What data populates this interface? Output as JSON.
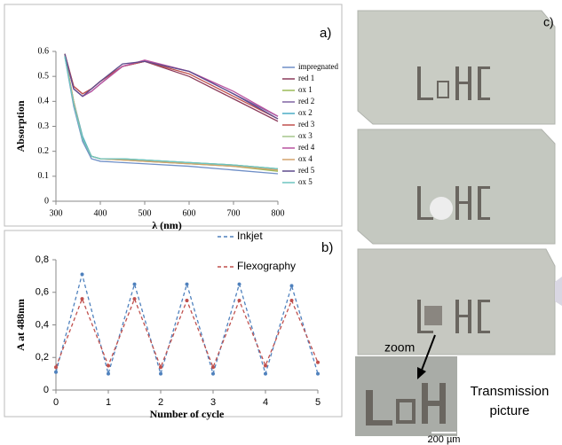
{
  "chart_data": [
    {
      "type": "line",
      "panel_label": "a)",
      "xlabel": "λ (nm)",
      "ylabel": "Absorption",
      "x": [
        320,
        340,
        360,
        380,
        400,
        450,
        500,
        600,
        700,
        800
      ],
      "xlim": [
        300,
        800
      ],
      "xticks": [
        300,
        400,
        500,
        600,
        700,
        800
      ],
      "ylim": [
        0,
        0.6
      ],
      "yticks": [
        0,
        0.1,
        0.2,
        0.3,
        0.4,
        0.5,
        0.6
      ],
      "legend": "right",
      "series": [
        {
          "name": "impregnated",
          "color": "#6f8fc7",
          "values": [
            0.58,
            0.38,
            0.24,
            0.17,
            0.16,
            0.155,
            0.15,
            0.14,
            0.125,
            0.11
          ]
        },
        {
          "name": "red 1",
          "color": "#8b3a5a",
          "values": [
            0.59,
            0.46,
            0.43,
            0.45,
            0.48,
            0.54,
            0.56,
            0.5,
            0.41,
            0.32
          ]
        },
        {
          "name": "ox 1",
          "color": "#9bbb59",
          "values": [
            0.59,
            0.4,
            0.25,
            0.18,
            0.17,
            0.165,
            0.16,
            0.15,
            0.14,
            0.12
          ]
        },
        {
          "name": "red 2",
          "color": "#8064a2",
          "values": [
            0.59,
            0.45,
            0.42,
            0.44,
            0.47,
            0.54,
            0.56,
            0.52,
            0.43,
            0.34
          ]
        },
        {
          "name": "ox 2",
          "color": "#4bacc6",
          "values": [
            0.58,
            0.4,
            0.26,
            0.18,
            0.17,
            0.17,
            0.165,
            0.155,
            0.145,
            0.13
          ]
        },
        {
          "name": "red 3",
          "color": "#c0504d",
          "values": [
            0.59,
            0.46,
            0.43,
            0.45,
            0.48,
            0.54,
            0.56,
            0.51,
            0.42,
            0.33
          ]
        },
        {
          "name": "ox 3",
          "color": "#a5c68a",
          "values": [
            0.59,
            0.39,
            0.25,
            0.18,
            0.17,
            0.17,
            0.165,
            0.155,
            0.145,
            0.13
          ]
        },
        {
          "name": "red 4",
          "color": "#b9529f",
          "values": [
            0.59,
            0.45,
            0.42,
            0.44,
            0.47,
            0.54,
            0.565,
            0.52,
            0.44,
            0.34
          ]
        },
        {
          "name": "ox 4",
          "color": "#d2a36c",
          "values": [
            0.59,
            0.4,
            0.25,
            0.18,
            0.17,
            0.165,
            0.16,
            0.15,
            0.14,
            0.125
          ]
        },
        {
          "name": "red 5",
          "color": "#5e4a8c",
          "values": [
            0.59,
            0.45,
            0.42,
            0.45,
            0.48,
            0.55,
            0.56,
            0.52,
            0.43,
            0.33
          ]
        },
        {
          "name": "ox 5",
          "color": "#6cc4c0",
          "values": [
            0.58,
            0.39,
            0.25,
            0.18,
            0.17,
            0.17,
            0.165,
            0.155,
            0.145,
            0.13
          ]
        }
      ]
    },
    {
      "type": "line",
      "panel_label": "b)",
      "xlabel": "Number of cycle",
      "ylabel": "A at 488nm",
      "x": [
        0,
        0.5,
        1,
        1.5,
        2,
        2.5,
        3,
        3.5,
        4,
        4.5,
        5
      ],
      "xlim": [
        0,
        5
      ],
      "xticks": [
        0,
        1,
        2,
        3,
        4,
        5
      ],
      "ylim": [
        0,
        0.8
      ],
      "yticks": [
        0,
        {
          "value": 0.2,
          "label": "0,2"
        },
        {
          "value": 0.4,
          "label": "0,4"
        },
        {
          "value": 0.6,
          "label": "0,6"
        },
        {
          "value": 0.8,
          "label": "0,8"
        }
      ],
      "linestyle": "dashed",
      "markers": true,
      "legend": "top",
      "series": [
        {
          "name": "Inkjet",
          "color": "#4f81bd",
          "values": [
            0.11,
            0.71,
            0.1,
            0.65,
            0.1,
            0.65,
            0.1,
            0.65,
            0.1,
            0.64,
            0.1
          ]
        },
        {
          "name": "Flexography",
          "color": "#c0504d",
          "values": [
            0.14,
            0.56,
            0.15,
            0.56,
            0.14,
            0.55,
            0.14,
            0.55,
            0.15,
            0.55,
            0.17
          ]
        }
      ]
    }
  ],
  "photos": {
    "label": "c)",
    "zoom": "zoom",
    "caption": [
      "Transmission",
      "picture"
    ],
    "scale": "200 µm"
  }
}
